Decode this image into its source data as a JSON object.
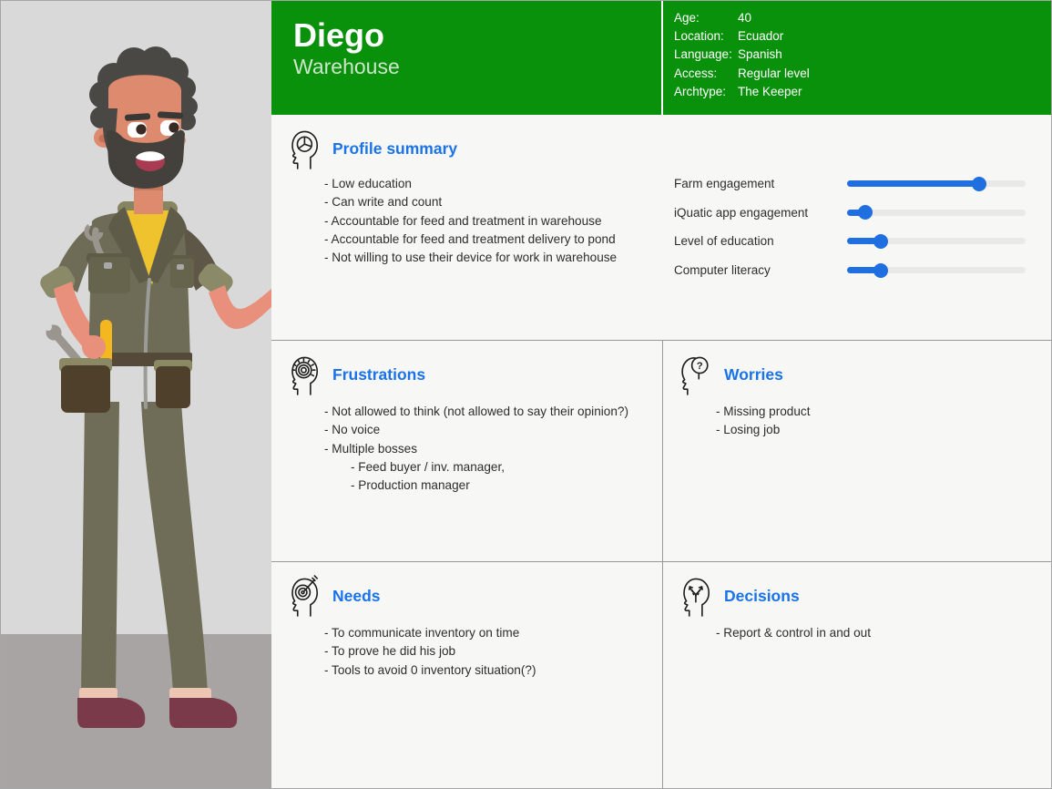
{
  "header": {
    "name": "Diego",
    "role": "Warehouse",
    "attributes": [
      {
        "label": "Age:",
        "value": "40"
      },
      {
        "label": "Location:",
        "value": "Ecuador"
      },
      {
        "label": "Language:",
        "value": "Spanish"
      },
      {
        "label": "Access:",
        "value": "Regular level"
      },
      {
        "label": "Archtype:",
        "value": "The Keeper"
      }
    ]
  },
  "profile_summary": {
    "title": "Profile summary",
    "items": [
      "- Low education",
      "- Can write and count",
      "- Accountable for feed and treatment in warehouse",
      "- Accountable for feed and treatment delivery to pond",
      "- Not willing to use their device for work in warehouse"
    ]
  },
  "sliders": [
    {
      "label": "Farm engagement",
      "percent": 74
    },
    {
      "label": "iQuatic app engagement",
      "percent": 10
    },
    {
      "label": "Level of education",
      "percent": 19
    },
    {
      "label": "Computer literacy",
      "percent": 19
    }
  ],
  "frustrations": {
    "title": "Frustrations",
    "items": [
      "- Not allowed to think (not allowed to say their opinion?)",
      "- No voice",
      "- Multiple bosses"
    ],
    "sub_items": [
      "- Feed buyer / inv. manager,",
      "- Production manager"
    ]
  },
  "worries": {
    "title": "Worries",
    "items": [
      "- Missing product",
      "- Losing job"
    ]
  },
  "needs": {
    "title": "Needs",
    "items": [
      "- To communicate inventory on time",
      "- To prove he did his job",
      "- Tools to avoid 0 inventory situation(?)"
    ]
  },
  "decisions": {
    "title": "Decisions",
    "items": [
      "- Report & control in and out"
    ]
  },
  "illustration": {
    "name": "warehouse-worker-cartoon"
  },
  "colors": {
    "header_green": "#0a910c",
    "title_blue": "#1a73e8",
    "slider_blue": "#1f6fe0",
    "slider_track": "#e9e9e7"
  }
}
